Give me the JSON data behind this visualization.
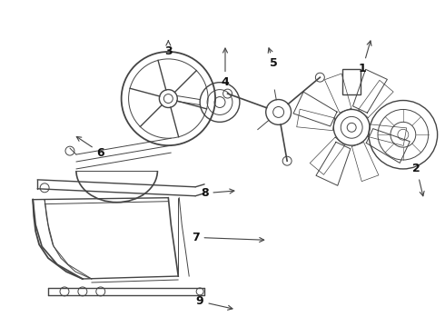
{
  "background_color": "#ffffff",
  "line_color": "#444444",
  "text_color": "#111111",
  "fig_width": 4.9,
  "fig_height": 3.6,
  "dpi": 100
}
